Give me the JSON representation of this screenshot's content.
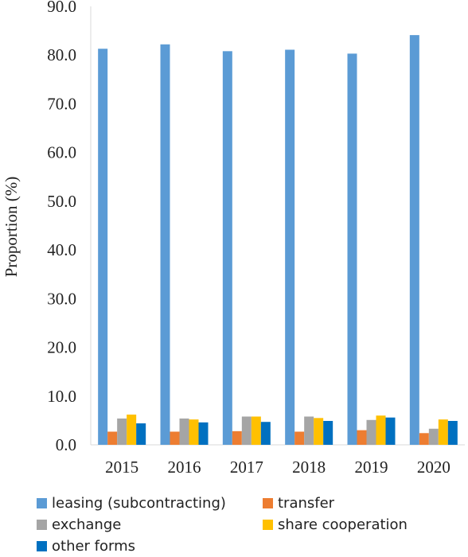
{
  "chart_data": {
    "type": "bar",
    "title": "",
    "xlabel": "",
    "ylabel": "Proportion (%)",
    "ylim": [
      0,
      90
    ],
    "yticks": [
      "0.0",
      "10.0",
      "20.0",
      "30.0",
      "40.0",
      "50.0",
      "60.0",
      "70.0",
      "80.0",
      "90.0"
    ],
    "grid": false,
    "legend_position": "bottom",
    "categories": [
      "2015",
      "2016",
      "2017",
      "2018",
      "2019",
      "2020"
    ],
    "series": [
      {
        "name": "leasing (subcontracting)",
        "color": "#5b9bd5",
        "values": [
          81.3,
          82.2,
          80.8,
          81.1,
          80.3,
          84.1
        ]
      },
      {
        "name": "transfer",
        "color": "#ed7d31",
        "values": [
          2.7,
          2.7,
          2.8,
          2.7,
          3.0,
          2.4
        ]
      },
      {
        "name": "exchange",
        "color": "#a5a5a5",
        "values": [
          5.4,
          5.4,
          5.8,
          5.8,
          5.1,
          3.3
        ]
      },
      {
        "name": "share cooperation",
        "color": "#ffc000",
        "values": [
          6.2,
          5.2,
          5.8,
          5.5,
          6.0,
          5.2
        ]
      },
      {
        "name": "other forms",
        "color": "#0070c0",
        "values": [
          4.4,
          4.6,
          4.7,
          4.9,
          5.6,
          4.9
        ]
      }
    ]
  }
}
